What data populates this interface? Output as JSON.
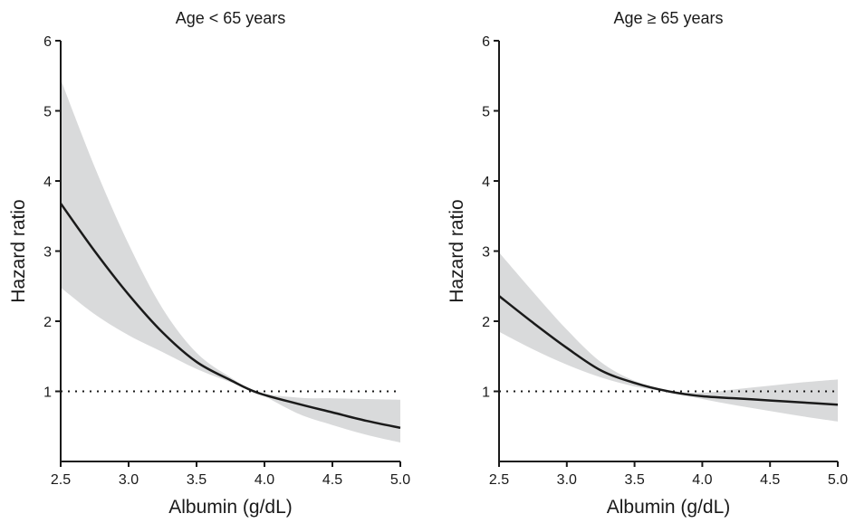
{
  "chart_data": [
    {
      "type": "line",
      "title": "Age < 65 years",
      "xlabel": "Albumin (g/dL)",
      "ylabel": "Hazard ratio",
      "xlim": [
        2.5,
        5.0
      ],
      "ylim": [
        0,
        6
      ],
      "xticks": [
        2.5,
        3.0,
        3.5,
        4.0,
        4.5,
        5.0
      ],
      "xtick_labels": [
        "2.5",
        "3.0",
        "3.5",
        "4.0",
        "4.5",
        "5.0"
      ],
      "yticks": [
        1,
        2,
        3,
        4,
        5,
        6
      ],
      "ytick_labels": [
        "1",
        "2",
        "3",
        "4",
        "5",
        "6"
      ],
      "reference_line": 1,
      "band_color": "#d9dadb",
      "line_color": "#1a1a1a",
      "x": [
        2.5,
        2.75,
        3.0,
        3.25,
        3.5,
        3.75,
        3.95,
        4.25,
        4.5,
        4.75,
        5.0
      ],
      "hr": [
        3.68,
        3.0,
        2.38,
        1.84,
        1.42,
        1.16,
        0.98,
        0.82,
        0.7,
        0.58,
        0.48
      ],
      "lower": [
        2.48,
        2.1,
        1.8,
        1.56,
        1.32,
        1.13,
        0.98,
        0.68,
        0.52,
        0.38,
        0.27
      ],
      "upper": [
        5.45,
        4.2,
        3.1,
        2.18,
        1.55,
        1.2,
        0.99,
        0.91,
        0.9,
        0.89,
        0.88
      ]
    },
    {
      "type": "line",
      "title": "Age ≥ 65 years",
      "xlabel": "Albumin (g/dL)",
      "ylabel": "Hazard ratio",
      "xlim": [
        2.5,
        5.0
      ],
      "ylim": [
        0,
        6
      ],
      "xticks": [
        2.5,
        3.0,
        3.5,
        4.0,
        4.5,
        5.0
      ],
      "xtick_labels": [
        "2.5",
        "3.0",
        "3.5",
        "4.0",
        "4.5",
        "5.0"
      ],
      "yticks": [
        1,
        2,
        3,
        4,
        5,
        6
      ],
      "ytick_labels": [
        "1",
        "2",
        "3",
        "4",
        "5",
        "6"
      ],
      "reference_line": 1,
      "band_color": "#d9dadb",
      "line_color": "#1a1a1a",
      "x": [
        2.5,
        2.75,
        3.0,
        3.25,
        3.5,
        3.75,
        4.0,
        4.25,
        4.5,
        4.75,
        5.0
      ],
      "hr": [
        2.36,
        1.98,
        1.62,
        1.3,
        1.12,
        1.0,
        0.93,
        0.9,
        0.87,
        0.84,
        0.81
      ],
      "lower": [
        1.85,
        1.6,
        1.38,
        1.2,
        1.07,
        0.99,
        0.89,
        0.8,
        0.72,
        0.64,
        0.57
      ],
      "upper": [
        2.98,
        2.42,
        1.88,
        1.42,
        1.15,
        1.01,
        0.98,
        1.03,
        1.08,
        1.13,
        1.17
      ]
    }
  ]
}
